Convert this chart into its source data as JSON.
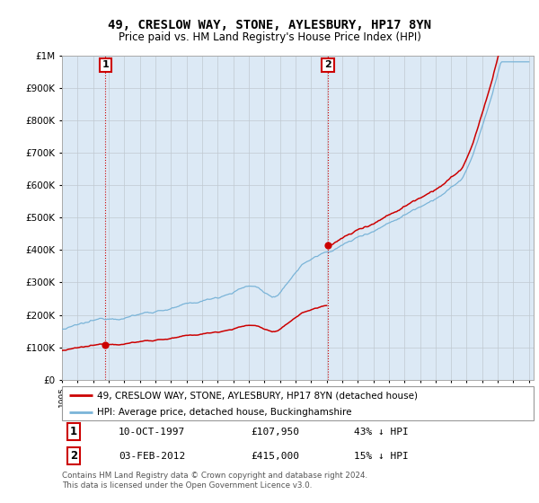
{
  "title": "49, CRESLOW WAY, STONE, AYLESBURY, HP17 8YN",
  "subtitle": "Price paid vs. HM Land Registry's House Price Index (HPI)",
  "sale1_label": "10-OCT-1997",
  "sale1_price": 107950,
  "sale1_price_str": "£107,950",
  "sale1_hpi_diff": "43% ↓ HPI",
  "sale2_label": "03-FEB-2012",
  "sale2_price": 415000,
  "sale2_price_str": "£415,000",
  "sale2_hpi_diff": "15% ↓ HPI",
  "hpi_line_color": "#7ab4d8",
  "price_line_color": "#cc0000",
  "dot_color": "#cc0000",
  "vline_color": "#cc0000",
  "plot_bg_color": "#dce9f5",
  "legend_label_price": "49, CRESLOW WAY, STONE, AYLESBURY, HP17 8YN (detached house)",
  "legend_label_hpi": "HPI: Average price, detached house, Buckinghamshire",
  "footer": "Contains HM Land Registry data © Crown copyright and database right 2024.\nThis data is licensed under the Open Government Licence v3.0.",
  "ylim_max": 1000000,
  "t1": 1997.79,
  "t2": 2012.09
}
